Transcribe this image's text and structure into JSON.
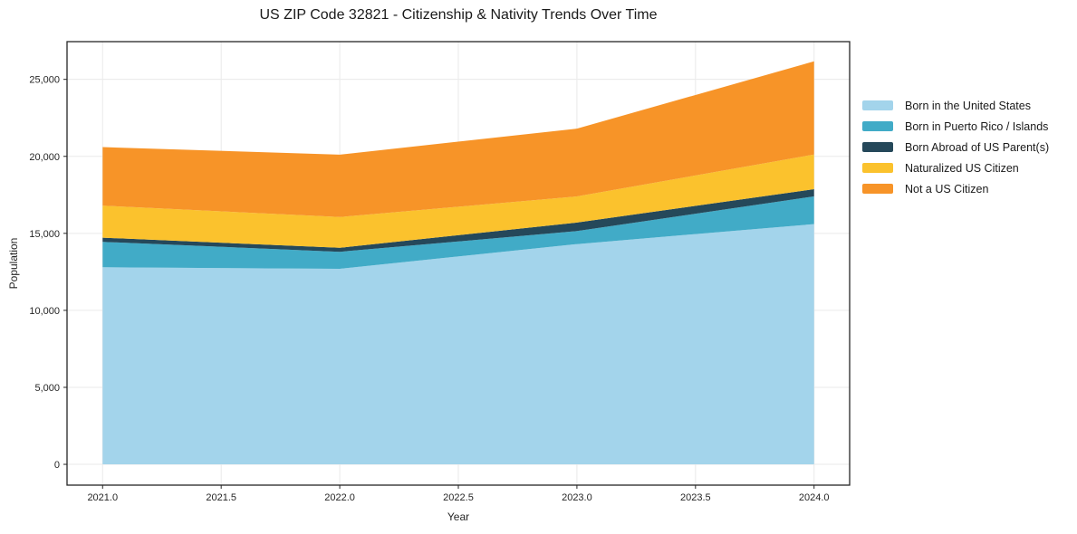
{
  "chart_data": {
    "type": "area",
    "stacked": true,
    "title": "US ZIP Code 32821 - Citizenship & Nativity Trends Over Time",
    "xlabel": "Year",
    "ylabel": "Population",
    "x": [
      2021,
      2022,
      2023,
      2024
    ],
    "series": [
      {
        "name": "Born in the United States",
        "color": "#A3D4EB",
        "values": [
          12800,
          12700,
          14300,
          15600
        ]
      },
      {
        "name": "Born in Puerto Rico / Islands",
        "color": "#41ABC7",
        "values": [
          1650,
          1100,
          850,
          1800
        ]
      },
      {
        "name": "Born Abroad of US Parent(s)",
        "color": "#25485A",
        "values": [
          270,
          260,
          550,
          470
        ]
      },
      {
        "name": "Naturalized US Citizen",
        "color": "#FBC22D",
        "values": [
          2080,
          2000,
          1700,
          2250
        ]
      },
      {
        "name": "Not a US Citizen",
        "color": "#F79428",
        "values": [
          3800,
          4050,
          4400,
          6050
        ]
      }
    ],
    "totals": [
      20600,
      20110,
      21800,
      26170
    ],
    "x_ticks": [
      2021.0,
      2021.5,
      2022.0,
      2022.5,
      2023.0,
      2023.5,
      2024.0
    ],
    "x_tick_labels": [
      "2021.0",
      "2021.5",
      "2022.0",
      "2022.5",
      "2023.0",
      "2023.5",
      "2024.0"
    ],
    "y_ticks": [
      0,
      5000,
      10000,
      15000,
      20000,
      25000
    ],
    "y_tick_labels": [
      "0",
      "5,000",
      "10,000",
      "15,000",
      "20,000",
      "25,000"
    ],
    "xlim": [
      2020.85,
      2024.15
    ],
    "ylim": [
      -1350,
      27450
    ],
    "grid": true,
    "legend_position": "right-outside",
    "colors": {
      "grid": "#eaeaea",
      "frame": "#262626",
      "tick_text": "#262626",
      "background": "#ffffff"
    }
  }
}
